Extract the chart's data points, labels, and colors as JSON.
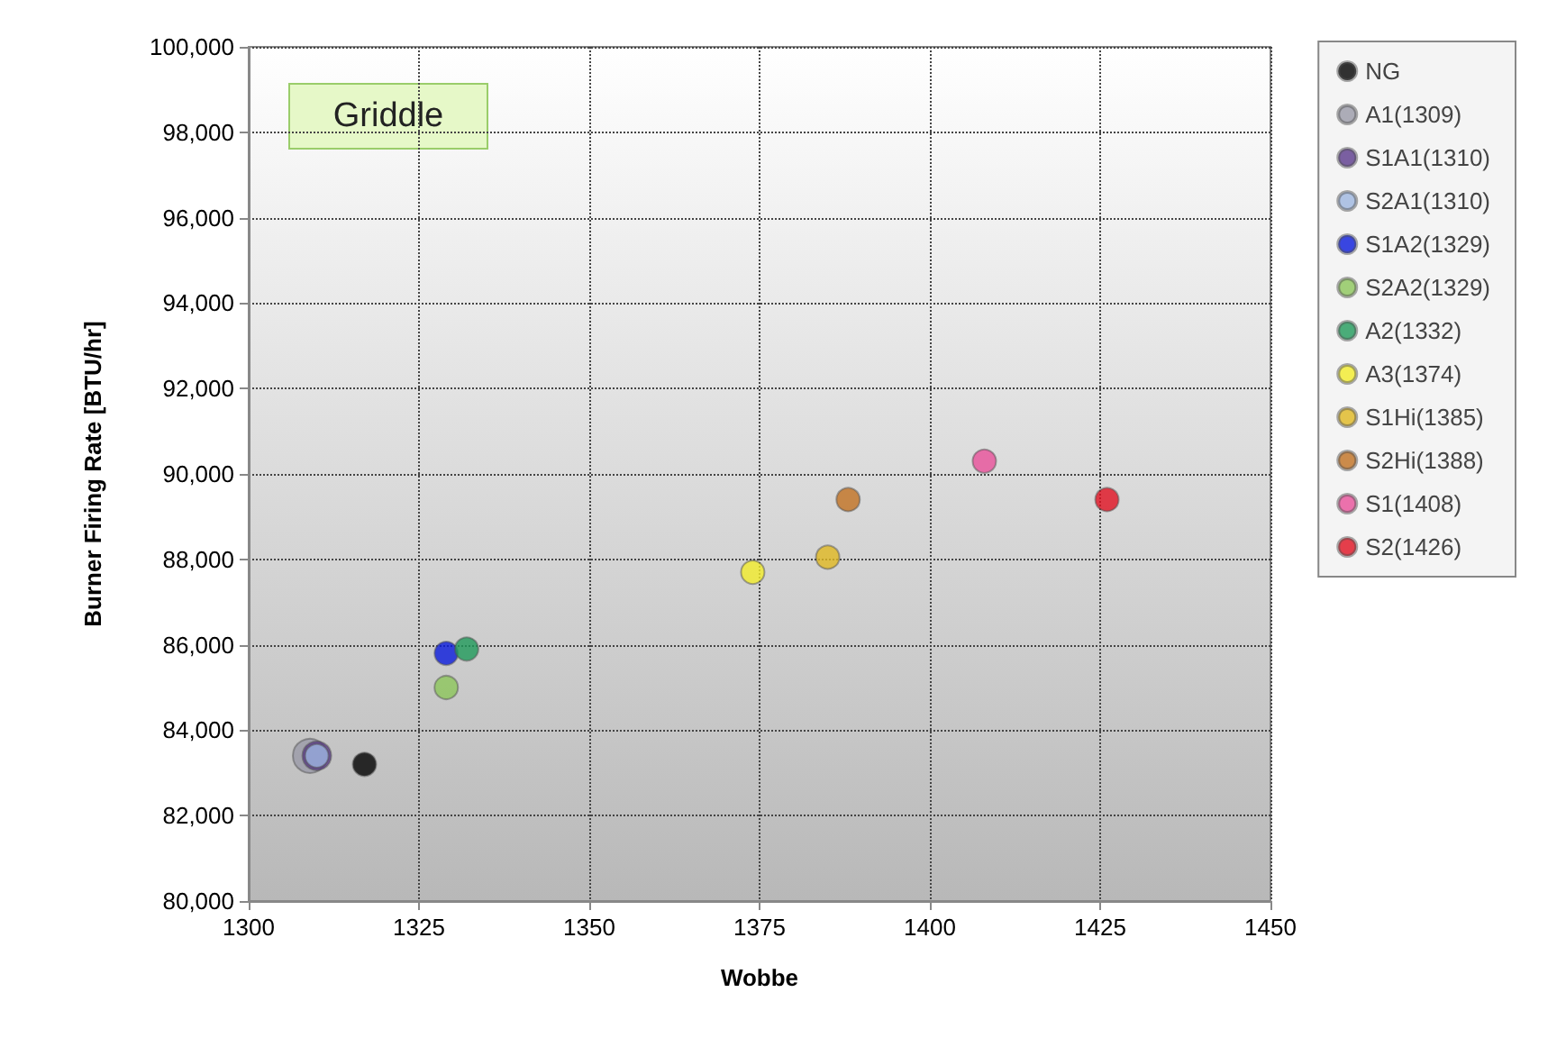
{
  "chart_data": {
    "type": "scatter",
    "xlabel": "Wobbe",
    "ylabel": "Burner Firing Rate [BTU/hr]",
    "annotations": [
      "Griddle"
    ],
    "xlim": [
      1300,
      1450
    ],
    "xticks": [
      1300,
      1325,
      1350,
      1375,
      1400,
      1425,
      1450
    ],
    "ylim": [
      80000,
      100000
    ],
    "yticks": [
      {
        "value": 80000,
        "label": "80,000"
      },
      {
        "value": 82000,
        "label": "82,000"
      },
      {
        "value": 84000,
        "label": "84,000"
      },
      {
        "value": 86000,
        "label": "86,000"
      },
      {
        "value": 88000,
        "label": "88,000"
      },
      {
        "value": 90000,
        "label": "90,000"
      },
      {
        "value": 92000,
        "label": "92,000"
      },
      {
        "value": 94000,
        "label": "94,000"
      },
      {
        "value": 96000,
        "label": "96,000"
      },
      {
        "value": 98000,
        "label": "98,000"
      },
      {
        "value": 100000,
        "label": "100,000"
      }
    ],
    "grid": true,
    "legend": "right",
    "marker": "circle",
    "series": [
      {
        "name": "NG",
        "color": "#000000",
        "x": [
          1317
        ],
        "values": [
          83200
        ]
      },
      {
        "name": "A1(1309)",
        "color": "#9a9aa8",
        "x": [
          1309
        ],
        "values": [
          83400
        ]
      },
      {
        "name": "S1A1(1310)",
        "color": "#5b3a8c",
        "x": [
          1310
        ],
        "values": [
          83400
        ]
      },
      {
        "name": "S2A1(1310)",
        "color": "#9db7e0",
        "x": [
          1310
        ],
        "values": [
          83400
        ]
      },
      {
        "name": "S1A2(1329)",
        "color": "#0a1adc",
        "x": [
          1329
        ],
        "values": [
          85800
        ]
      },
      {
        "name": "S2A2(1329)",
        "color": "#8cc65a",
        "x": [
          1329
        ],
        "values": [
          85000
        ]
      },
      {
        "name": "A2(1332)",
        "color": "#1f9a5a",
        "x": [
          1332
        ],
        "values": [
          85900
        ]
      },
      {
        "name": "A3(1374)",
        "color": "#f2ec2a",
        "x": [
          1374
        ],
        "values": [
          87700
        ]
      },
      {
        "name": "S1Hi(1385)",
        "color": "#e0b820",
        "x": [
          1385
        ],
        "values": [
          88050
        ]
      },
      {
        "name": "S2Hi(1388)",
        "color": "#c07020",
        "x": [
          1388
        ],
        "values": [
          89400
        ]
      },
      {
        "name": "S1(1408)",
        "color": "#e8509a",
        "x": [
          1408
        ],
        "values": [
          90300
        ]
      },
      {
        "name": "S2(1426)",
        "color": "#e01020",
        "x": [
          1426
        ],
        "values": [
          89400
        ]
      }
    ]
  }
}
